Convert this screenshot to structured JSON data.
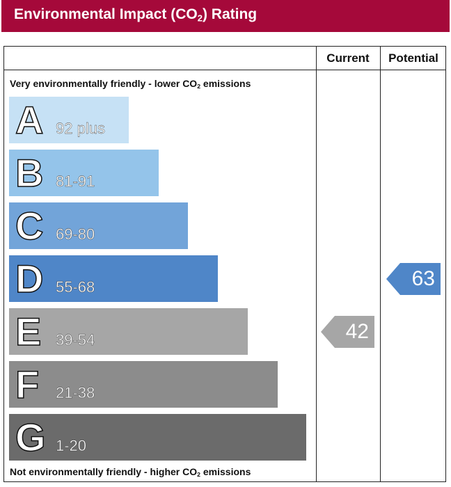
{
  "header": {
    "title_before": "Environmental Impact (CO",
    "title_sub": "2",
    "title_after": ") Rating",
    "bg_color": "#a5093a"
  },
  "columns": {
    "current": "Current",
    "potential": "Potential"
  },
  "captions": {
    "top_before": "Very environmentally friendly - lower CO",
    "top_sub": "2",
    "top_after": " emissions",
    "bottom_before": "Not environmentally friendly - higher CO",
    "bottom_sub": "2",
    "bottom_after": " emissions"
  },
  "chart_data": {
    "type": "bar",
    "bands": [
      {
        "letter": "A",
        "range": "92 plus",
        "min": 92,
        "max": 100,
        "color": "#c6e1f5"
      },
      {
        "letter": "B",
        "range": "81-91",
        "min": 81,
        "max": 91,
        "color": "#94c4ea"
      },
      {
        "letter": "C",
        "range": "69-80",
        "min": 69,
        "max": 80,
        "color": "#72a4d9"
      },
      {
        "letter": "D",
        "range": "55-68",
        "min": 55,
        "max": 68,
        "color": "#4f86c8"
      },
      {
        "letter": "E",
        "range": "39-54",
        "min": 39,
        "max": 54,
        "color": "#a6a6a6"
      },
      {
        "letter": "F",
        "range": "21-38",
        "min": 21,
        "max": 38,
        "color": "#8c8c8c"
      },
      {
        "letter": "G",
        "range": "1-20",
        "min": 1,
        "max": 20,
        "color": "#6b6b6b"
      }
    ],
    "ratings": [
      {
        "column": "Current",
        "value": 42,
        "band": "E",
        "color": "#a6a6a6"
      },
      {
        "column": "Potential",
        "value": 63,
        "band": "D",
        "color": "#4f86c8"
      }
    ]
  }
}
